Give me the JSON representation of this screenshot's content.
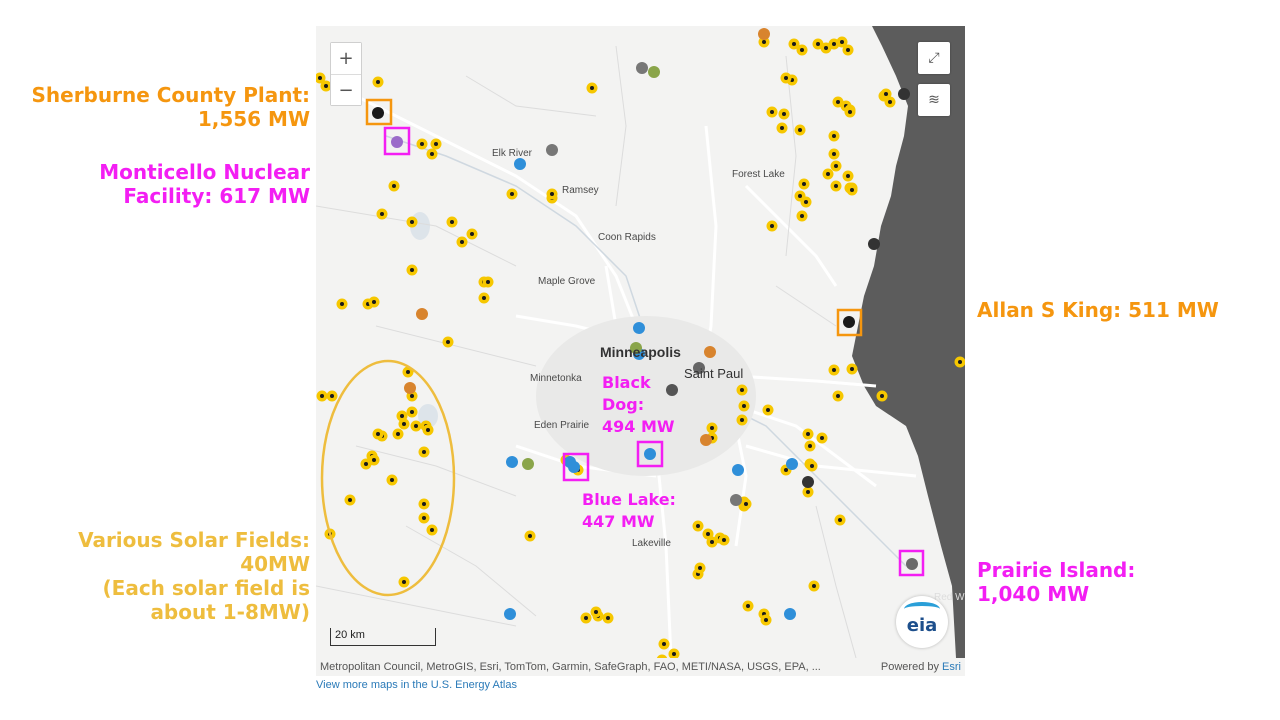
{
  "annotations": {
    "sherburne": {
      "lines": [
        "Sherburne County Plant:",
        "1,556 MW"
      ],
      "color": "#f5960f"
    },
    "monticello": {
      "lines": [
        "Monticello Nuclear",
        "Facility: 617 MW"
      ],
      "color": "#f31ef3"
    },
    "solar": {
      "lines": [
        "Various Solar Fields:",
        "40MW",
        "(Each solar field is",
        "about 1-8MW)"
      ],
      "color": "#eebd3e"
    },
    "allan_king": {
      "lines": [
        "Allan S King: 511 MW"
      ],
      "color": "#f5960f"
    },
    "prairie_island": {
      "lines": [
        "Prairie Island:",
        "1,040 MW"
      ],
      "color": "#f31ef3"
    },
    "black_dog": {
      "lines": [
        "Black",
        "Dog:",
        "494 MW"
      ],
      "color": "#f31ef3"
    },
    "blue_lake": {
      "lines": [
        "Blue Lake:",
        "447 MW"
      ],
      "color": "#f31ef3"
    }
  },
  "map": {
    "zoom_in": "+",
    "zoom_out": "−",
    "places": {
      "elk_river": "Elk River",
      "ramsey": "Ramsey",
      "forest_lake": "Forest Lake",
      "coon_rapids": "Coon Rapids",
      "maple_grove": "Maple Grove",
      "minneapolis": "Minneapolis",
      "minnetonka": "Minnetonka",
      "saint_paul": "Saint Paul",
      "eden_prairie": "Eden Prairie",
      "lakeville": "Lakeville",
      "red_wing": "Red Wi"
    },
    "scale": "20 km",
    "logo": "eia",
    "attribution": "Metropolitan Council, MetroGIS, Esri, TomTom, Garmin, SafeGraph, FAO, METI/NASA, USGS, EPA, ...",
    "powered_by": "Powered by",
    "esri": "Esri",
    "atlas_link": "View more maps in the U.S. Energy Atlas",
    "colors": {
      "solar": "#f6c700",
      "hydro": "#2f8fd9",
      "coal": "#1a1a1a",
      "land": "#f3f3f2",
      "wisconsin": "#5c5c5c",
      "highlight_orange": "#f5960f",
      "highlight_magenta": "#f31ef3",
      "ellipse": "#eebd3e"
    }
  }
}
